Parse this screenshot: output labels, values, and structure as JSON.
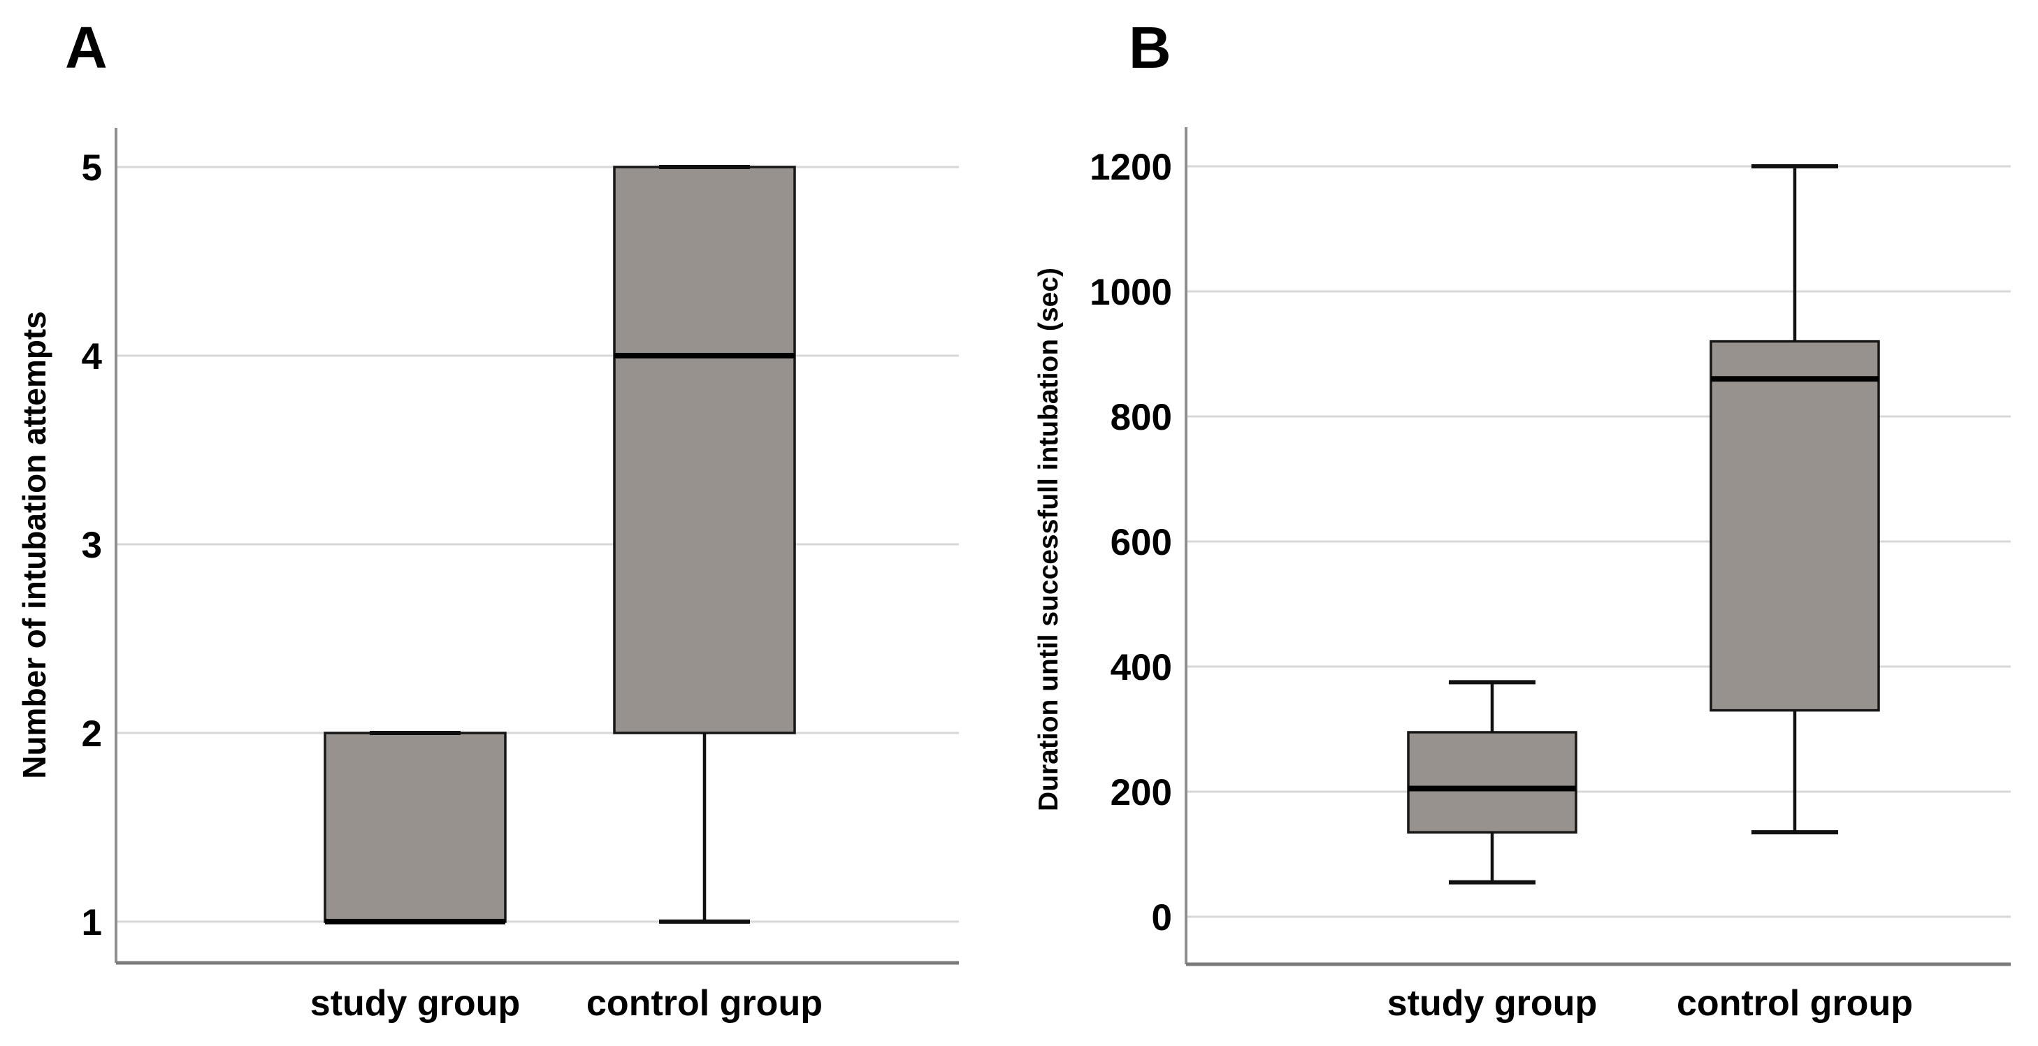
{
  "figure": {
    "background": "#ffffff",
    "panels": [
      {
        "letter": "A"
      },
      {
        "letter": "B"
      }
    ]
  },
  "chart_data": [
    {
      "type": "box",
      "panel": "A",
      "title": "",
      "xlabel": "",
      "ylabel": "Number of intubation attempts",
      "categories": [
        "study group",
        "control group"
      ],
      "yticks": [
        1,
        2,
        3,
        4,
        5
      ],
      "ylim": [
        0.78,
        5.21
      ],
      "grid": "horizontal",
      "legend": "none",
      "series": [
        {
          "name": "study group",
          "min": 1,
          "q1": 1,
          "median": 1,
          "q3": 2,
          "max": 2
        },
        {
          "name": "control group",
          "min": 1,
          "q1": 2,
          "median": 4,
          "q3": 5,
          "max": 5
        }
      ]
    },
    {
      "type": "box",
      "panel": "B",
      "title": "",
      "xlabel": "",
      "ylabel": "Duration until successfull intubation (sec)",
      "categories": [
        "study group",
        "control group"
      ],
      "yticks": [
        0,
        200,
        400,
        600,
        800,
        1000,
        1200
      ],
      "ylim": [
        -76,
        1263
      ],
      "grid": "horizontal",
      "legend": "none",
      "series": [
        {
          "name": "study group",
          "min": 55,
          "q1": 135,
          "median": 205,
          "q3": 295,
          "max": 375
        },
        {
          "name": "control group",
          "min": 135,
          "q1": 330,
          "median": 860,
          "q3": 920,
          "max": 1200
        }
      ]
    }
  ],
  "colors": {
    "box_fill": "#98928e",
    "box_border": "#161616",
    "median": "#000000",
    "whisker": "#111111",
    "grid": "#d7d7d7",
    "axis": "#8f8f8f",
    "frame": "#7a7a7a",
    "text": "#000000",
    "background": "#ffffff"
  }
}
